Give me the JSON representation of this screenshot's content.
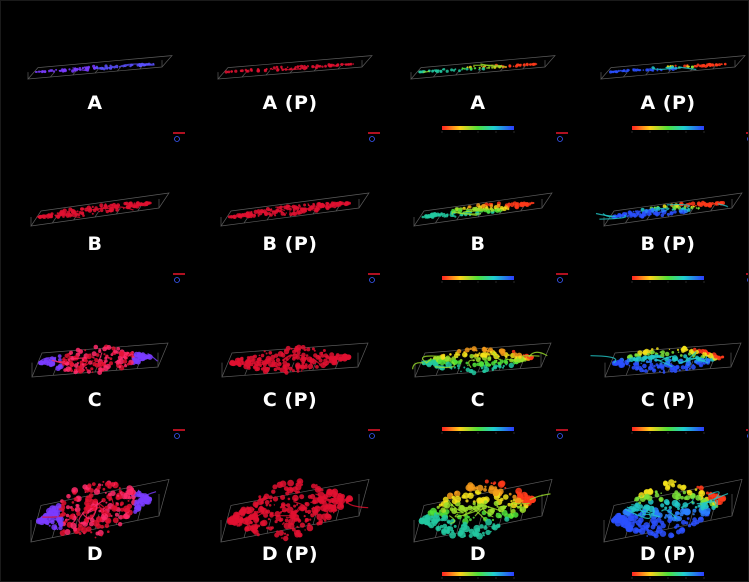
{
  "figure": {
    "rows": [
      {
        "row": "A",
        "labels": [
          "A",
          "A (P)",
          "A",
          "A (P)"
        ]
      },
      {
        "row": "B",
        "labels": [
          "B",
          "B (P)",
          "B",
          "B (P)"
        ]
      },
      {
        "row": "C",
        "labels": [
          "C",
          "C (P)",
          "C",
          "C (P)"
        ]
      },
      {
        "row": "D",
        "labels": [
          "D",
          "D (P)",
          "D",
          "D (P)"
        ]
      }
    ],
    "columns": [
      {
        "render": "red-purple-3d"
      },
      {
        "render": "red-3d"
      },
      {
        "render": "depth-colored-3d",
        "has_colorbar": true
      },
      {
        "render": "depth-colored-3d",
        "has_colorbar": true
      }
    ],
    "colors": {
      "background": "#000000",
      "label": "#ffffff",
      "box_lines": "#5a5a5a",
      "red": "#e01030",
      "magenta": "#ff2a6a",
      "purple": "#7a3cff",
      "green": "#6fdc2a",
      "yellow": "#f3e21a",
      "cyan": "#22c8c8",
      "blue": "#2050ff"
    }
  }
}
